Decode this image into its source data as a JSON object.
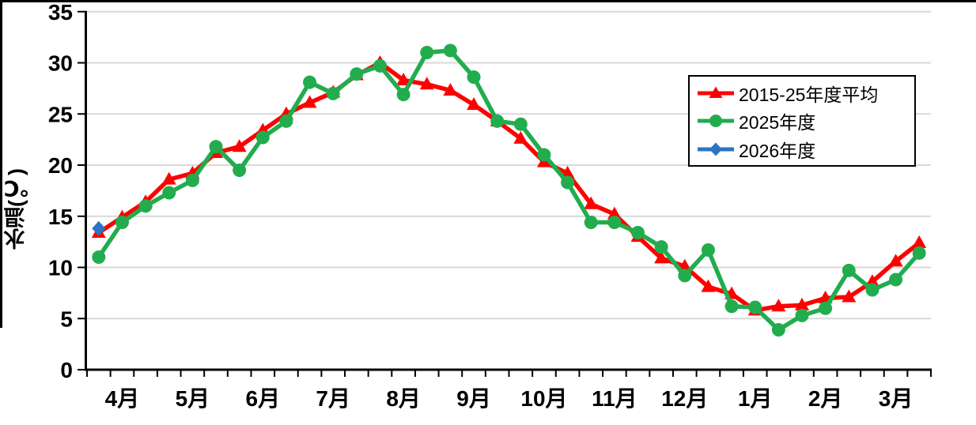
{
  "chart_data": {
    "type": "line",
    "title": "",
    "ylabel": "水温(℃)",
    "ylim": [
      0,
      35
    ],
    "y_ticks": [
      0,
      5,
      10,
      15,
      20,
      25,
      30,
      35
    ],
    "x_month_labels": [
      "4月",
      "5月",
      "6月",
      "7月",
      "8月",
      "9月",
      "10月",
      "11月",
      "12月",
      "1月",
      "2月",
      "3月"
    ],
    "points_per_month": 3,
    "grid": "horizontal-only",
    "gridline_color": "#D9D9D9",
    "axis_color": "#000000",
    "legend_position": "upper-right-inside",
    "series": [
      {
        "name": "2015-25年度平均",
        "color": "#FF0000",
        "marker": "triangle",
        "values": [
          13.4,
          14.9,
          16.4,
          18.6,
          19.2,
          21.2,
          21.8,
          23.4,
          25.0,
          26.1,
          27.1,
          28.8,
          30.0,
          28.3,
          27.9,
          27.3,
          25.9,
          24.3,
          22.6,
          20.3,
          19.2,
          16.2,
          15.2,
          13.0,
          10.9,
          10.1,
          8.1,
          7.4,
          5.8,
          6.2,
          6.3,
          7.0,
          7.1,
          8.6,
          10.6,
          12.4
        ]
      },
      {
        "name": "2025年度",
        "color": "#22AC4E",
        "marker": "circle",
        "values": [
          11.0,
          14.4,
          16.0,
          17.3,
          18.5,
          21.8,
          19.5,
          22.7,
          24.3,
          28.1,
          27.0,
          28.9,
          29.7,
          26.9,
          31.0,
          31.2,
          28.6,
          24.3,
          24.0,
          21.0,
          18.3,
          14.4,
          14.4,
          13.4,
          12.0,
          9.2,
          11.7,
          6.2,
          6.1,
          3.9,
          5.3,
          6.0,
          9.7,
          7.8,
          8.8,
          11.4
        ]
      },
      {
        "name": "2026年度",
        "color": "#2A74C4",
        "marker": "diamond",
        "values": [
          13.8
        ]
      }
    ]
  },
  "frame": {
    "top_border_color": "#000000",
    "left_border_color": "#000000"
  }
}
